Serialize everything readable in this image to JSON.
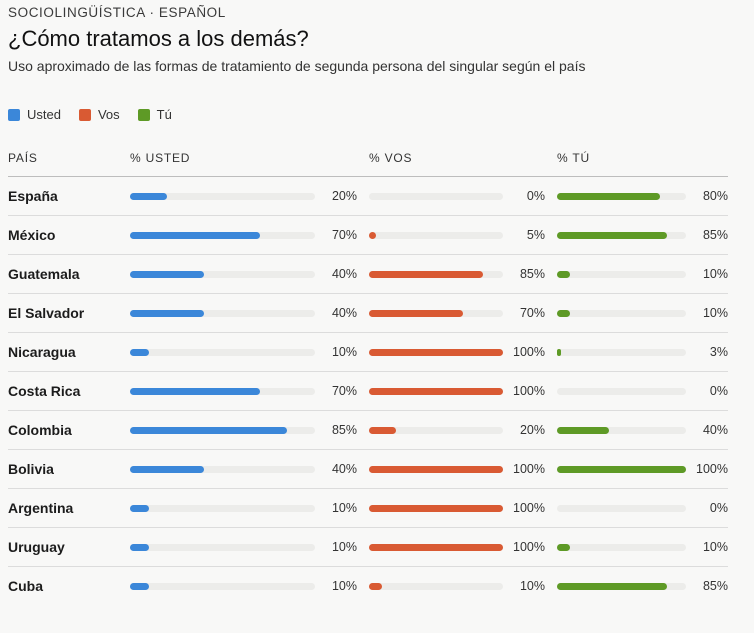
{
  "header": {
    "kicker": "SOCIOLINGÜÍSTICA · ESPAÑOL",
    "title": "¿Cómo tratamos a los demás?",
    "subtitle": "Uso aproximado de las formas de tratamiento de segunda persona del singular según el país"
  },
  "legend": [
    {
      "label": "Usted",
      "color": "#3b87d9"
    },
    {
      "label": "Vos",
      "color": "#d95a33"
    },
    {
      "label": "Tú",
      "color": "#5e9a26"
    }
  ],
  "columns": {
    "country": "PAÍS",
    "usted": "% USTED",
    "vos": "% VOS",
    "tu": "% TÚ"
  },
  "chart_data": {
    "type": "bar",
    "title": "¿Cómo tratamos a los demás?",
    "subtitle": "Uso aproximado de las formas de tratamiento de segunda persona del singular según el país",
    "categories": [
      "España",
      "México",
      "Guatemala",
      "El Salvador",
      "Nicaragua",
      "Costa Rica",
      "Colombia",
      "Bolivia",
      "Argentina",
      "Uruguay",
      "Cuba"
    ],
    "series": [
      {
        "name": "Usted",
        "color": "#3b87d9",
        "values": [
          20,
          70,
          40,
          40,
          10,
          70,
          85,
          40,
          10,
          10,
          10
        ]
      },
      {
        "name": "Vos",
        "color": "#d95a33",
        "values": [
          0,
          5,
          85,
          70,
          100,
          100,
          20,
          100,
          100,
          100,
          10
        ]
      },
      {
        "name": "Tú",
        "color": "#5e9a26",
        "values": [
          80,
          85,
          10,
          10,
          3,
          0,
          40,
          100,
          0,
          10,
          85
        ]
      }
    ],
    "value_suffix": "%",
    "ylim": [
      0,
      100
    ],
    "legend_position": "top-left"
  }
}
